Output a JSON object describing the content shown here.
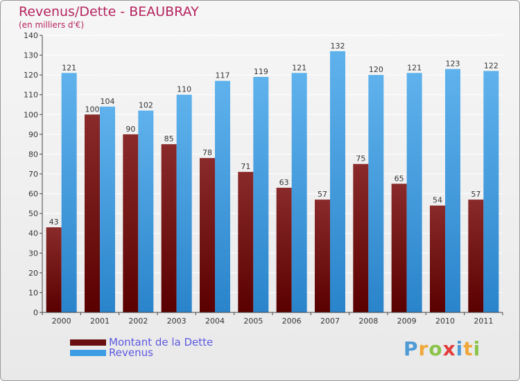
{
  "header": {
    "title": "Revenus/Dette - BEAUBRAY",
    "subtitle": "(en milliers d'€)"
  },
  "legend": {
    "debt_label": "Montant de la Dette",
    "revenue_label": "Revenus"
  },
  "logo": {
    "text": "Proxiti",
    "letters": [
      "P",
      "r",
      "o",
      "x",
      "i",
      "t",
      "i"
    ]
  },
  "colors": {
    "debt": "#7d1818",
    "revenue": "#3d9ce3",
    "title": "#b5245e",
    "legend_text": "#5b58e0"
  },
  "chart_data": {
    "type": "bar",
    "categories": [
      "2000",
      "2001",
      "2002",
      "2003",
      "2004",
      "2005",
      "2006",
      "2007",
      "2008",
      "2009",
      "2010",
      "2011"
    ],
    "series": [
      {
        "name": "Montant de la Dette",
        "values": [
          43,
          100,
          90,
          85,
          78,
          71,
          63,
          57,
          75,
          65,
          54,
          57
        ]
      },
      {
        "name": "Revenus",
        "values": [
          121,
          104,
          102,
          110,
          117,
          119,
          121,
          132,
          120,
          121,
          123,
          122
        ]
      }
    ],
    "title": "Revenus/Dette - BEAUBRAY",
    "subtitle": "(en milliers d'€)",
    "ylim": [
      0,
      140
    ],
    "yticks": [
      0,
      10,
      20,
      30,
      40,
      50,
      60,
      70,
      80,
      90,
      100,
      110,
      120,
      130,
      140
    ],
    "grid": true,
    "legend_position": "bottom-left"
  }
}
